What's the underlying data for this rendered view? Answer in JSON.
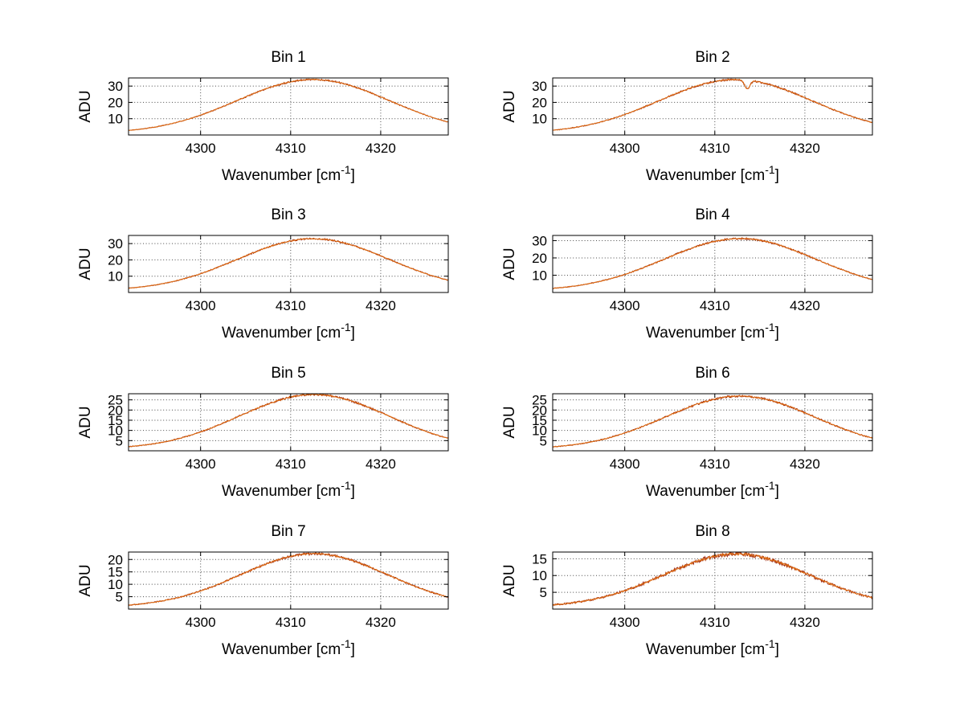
{
  "figure": {
    "background": "#ffffff",
    "axis_color": "#000000",
    "grid_color": "#4a4a4a",
    "line_colors": [
      "#9e2a10",
      "#e06d10"
    ]
  },
  "chart_data": {
    "type": "line",
    "layout": "4x2 grid of subplots",
    "common": {
      "xlabel": {
        "pre": "Wavenumber [cm",
        "sup": "-1",
        "post": "]"
      },
      "ylabel": "ADU",
      "xlim": [
        4292,
        4327.5
      ],
      "xticks": [
        4300,
        4310,
        4320
      ],
      "grid": true,
      "legend": "none"
    },
    "subplots": [
      {
        "title": "Bin 1",
        "ylim": [
          0,
          35
        ],
        "yticks": [
          10,
          20,
          30
        ],
        "model": {
          "amplitude": 33,
          "center": 4312.5,
          "sigma": 8.5,
          "baseline": 1.0,
          "noise": 0.28,
          "dip": null
        }
      },
      {
        "title": "Bin 2",
        "ylim": [
          0,
          35
        ],
        "yticks": [
          10,
          20,
          30
        ],
        "model": {
          "amplitude": 33,
          "center": 4312.3,
          "sigma": 8.5,
          "baseline": 1.0,
          "noise": 0.32,
          "dip": {
            "x": 4313.6,
            "depth": 5.5,
            "width": 0.28
          }
        }
      },
      {
        "title": "Bin 3",
        "ylim": [
          0,
          35
        ],
        "yticks": [
          10,
          20,
          30
        ],
        "model": {
          "amplitude": 32,
          "center": 4312.5,
          "sigma": 8.4,
          "baseline": 1.0,
          "noise": 0.3,
          "dip": null
        }
      },
      {
        "title": "Bin 4",
        "ylim": [
          0,
          33
        ],
        "yticks": [
          10,
          20,
          30
        ],
        "model": {
          "amplitude": 30.2,
          "center": 4312.8,
          "sigma": 8.4,
          "baseline": 1.0,
          "noise": 0.3,
          "dip": null
        }
      },
      {
        "title": "Bin 5",
        "ylim": [
          0,
          28
        ],
        "yticks": [
          5,
          10,
          15,
          20,
          25
        ],
        "model": {
          "amplitude": 26.8,
          "center": 4312.6,
          "sigma": 8.3,
          "baseline": 0.8,
          "noise": 0.28,
          "dip": null
        }
      },
      {
        "title": "Bin 6",
        "ylim": [
          0,
          28
        ],
        "yticks": [
          5,
          10,
          15,
          20,
          25
        ],
        "model": {
          "amplitude": 26.0,
          "center": 4312.8,
          "sigma": 8.3,
          "baseline": 0.8,
          "noise": 0.3,
          "dip": null
        }
      },
      {
        "title": "Bin 7",
        "ylim": [
          0,
          23
        ],
        "yticks": [
          5,
          10,
          15,
          20
        ],
        "model": {
          "amplitude": 21.6,
          "center": 4312.6,
          "sigma": 8.2,
          "baseline": 0.7,
          "noise": 0.28,
          "dip": null
        }
      },
      {
        "title": "Bin 8",
        "ylim": [
          0,
          17
        ],
        "yticks": [
          5,
          10,
          15
        ],
        "model": {
          "amplitude": 15.8,
          "center": 4312.4,
          "sigma": 8.1,
          "baseline": 0.6,
          "noise": 0.34,
          "dip": null
        }
      }
    ]
  }
}
